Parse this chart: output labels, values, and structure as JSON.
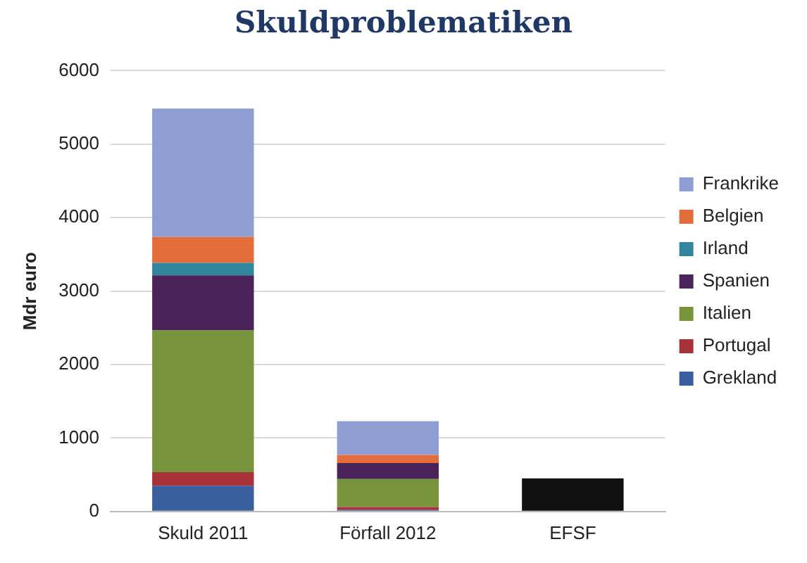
{
  "chart_data": {
    "type": "bar",
    "title": "Skuldproblematiken",
    "ylabel": "Mdr euro",
    "categories": [
      "Skuld 2011",
      "Förfall 2012",
      "EFSF"
    ],
    "stacked": true,
    "series": [
      {
        "name": "Grekland",
        "color": "#3a5f9e",
        "values": [
          350,
          20,
          0
        ]
      },
      {
        "name": "Portugal",
        "color": "#a8323a",
        "values": [
          185,
          40,
          0
        ]
      },
      {
        "name": "Italien",
        "color": "#77933c",
        "values": [
          1930,
          380,
          0
        ]
      },
      {
        "name": "Spanien",
        "color": "#4a235a",
        "values": [
          750,
          220,
          0
        ]
      },
      {
        "name": "Irland",
        "color": "#31859c",
        "values": [
          170,
          0,
          0
        ]
      },
      {
        "name": "Belgien",
        "color": "#e46c3a",
        "values": [
          350,
          110,
          0
        ]
      },
      {
        "name": "Frankrike",
        "color": "#8e9ed3",
        "values": [
          1750,
          460,
          0
        ]
      },
      {
        "color": "#111111",
        "values": [
          0,
          0,
          450
        ]
      }
    ],
    "ylim": [
      0,
      6000
    ],
    "yticks": [
      0,
      1000,
      2000,
      3000,
      4000,
      5000,
      6000
    ],
    "grid": "y",
    "legend": "right"
  }
}
